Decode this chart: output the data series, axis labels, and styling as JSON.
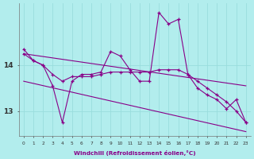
{
  "xlabel": "Windchill (Refroidissement éolien,°C)",
  "x": [
    0,
    1,
    2,
    3,
    4,
    5,
    6,
    7,
    8,
    9,
    10,
    11,
    12,
    13,
    14,
    15,
    16,
    17,
    18,
    19,
    20,
    21,
    22,
    23
  ],
  "y_main": [
    14.35,
    14.1,
    14.0,
    13.55,
    12.75,
    13.65,
    13.8,
    13.8,
    13.85,
    14.3,
    14.2,
    13.9,
    13.65,
    13.65,
    15.15,
    14.9,
    15.0,
    13.8,
    13.5,
    13.35,
    13.25,
    13.05,
    13.25,
    12.75
  ],
  "y_smooth": [
    14.25,
    14.1,
    14.0,
    13.8,
    13.65,
    13.75,
    13.75,
    13.75,
    13.8,
    13.85,
    13.85,
    13.85,
    13.85,
    13.85,
    13.9,
    13.9,
    13.9,
    13.8,
    13.65,
    13.5,
    13.35,
    13.2,
    13.0,
    12.75
  ],
  "trend_upper_start": 14.25,
  "trend_upper_end": 13.55,
  "trend_lower_start": 13.65,
  "trend_lower_end": 12.55,
  "bg_color": "#b2eded",
  "line_color": "#880088",
  "grid_color": "#99dddd",
  "ylim": [
    12.45,
    15.35
  ],
  "yticks": [
    13,
    14
  ],
  "xlim": [
    -0.5,
    23.5
  ]
}
